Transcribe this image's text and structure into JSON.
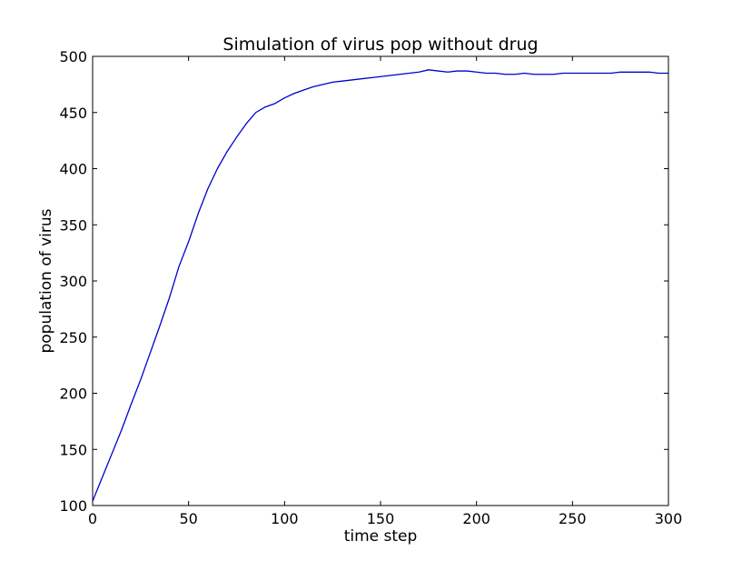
{
  "chart_data": {
    "type": "line",
    "title": "Simulation of virus pop without drug",
    "xlabel": "time step",
    "ylabel": "population of virus",
    "xlim": [
      0,
      300
    ],
    "ylim": [
      100,
      500
    ],
    "xticks": [
      0,
      50,
      100,
      150,
      200,
      250,
      300
    ],
    "yticks": [
      100,
      150,
      200,
      250,
      300,
      350,
      400,
      450,
      500
    ],
    "grid": false,
    "legend": "none",
    "line_color": "#0000cc",
    "series": [
      {
        "x": [
          0,
          5,
          10,
          15,
          20,
          25,
          30,
          35,
          40,
          45,
          50,
          55,
          60,
          65,
          70,
          75,
          80,
          85,
          90,
          95,
          100,
          105,
          110,
          115,
          120,
          125,
          130,
          135,
          140,
          145,
          150,
          155,
          160,
          165,
          170,
          175,
          180,
          185,
          190,
          195,
          200,
          205,
          210,
          215,
          220,
          225,
          230,
          235,
          240,
          245,
          250,
          255,
          260,
          265,
          270,
          275,
          280,
          285,
          290,
          295,
          300
        ],
        "values": [
          104,
          125,
          146,
          167,
          190,
          212,
          236,
          260,
          285,
          313,
          335,
          360,
          382,
          400,
          415,
          428,
          440,
          450,
          455,
          458,
          463,
          467,
          470,
          473,
          475,
          477,
          478,
          479,
          480,
          481,
          482,
          483,
          484,
          485,
          486,
          488,
          487,
          486,
          487,
          487,
          486,
          485,
          485,
          484,
          484,
          485,
          484,
          484,
          484,
          485,
          485,
          485,
          485,
          485,
          485,
          486,
          486,
          486,
          486,
          485,
          485
        ]
      }
    ]
  }
}
